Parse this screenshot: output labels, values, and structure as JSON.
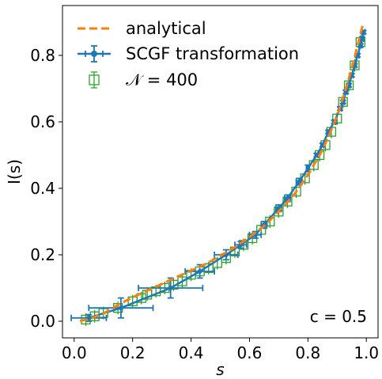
{
  "chart_data": {
    "type": "line",
    "xlabel": "s",
    "ylabel": "I(s)",
    "xlim": [
      -0.04,
      1.04
    ],
    "ylim": [
      -0.05,
      0.95
    ],
    "x_ticks": [
      0.0,
      0.2,
      0.4,
      0.6,
      0.8,
      1.0
    ],
    "x_tick_labels": [
      "0.0",
      "0.2",
      "0.4",
      "0.6",
      "0.8",
      "1.0"
    ],
    "y_ticks": [
      0.0,
      0.2,
      0.4,
      0.6,
      0.8
    ],
    "y_tick_labels": [
      "0.0",
      "0.2",
      "0.4",
      "0.6",
      "0.8"
    ],
    "grid": false,
    "legend_position": "top-left",
    "annotation": "c = 0.5",
    "colors": {
      "analytical": "#ff7f0e",
      "scgf": "#1f77b4",
      "n400": "#2ca02c"
    },
    "series": [
      {
        "name": "analytical",
        "style": "dashed",
        "x": [
          0.02,
          0.05,
          0.1,
          0.15,
          0.2,
          0.25,
          0.3,
          0.35,
          0.4,
          0.45,
          0.5,
          0.55,
          0.6,
          0.65,
          0.7,
          0.75,
          0.8,
          0.85,
          0.9,
          0.93,
          0.95,
          0.97,
          0.99
        ],
        "y": [
          0.001,
          0.006,
          0.023,
          0.049,
          0.072,
          0.092,
          0.112,
          0.133,
          0.152,
          0.172,
          0.197,
          0.223,
          0.253,
          0.287,
          0.33,
          0.378,
          0.44,
          0.515,
          0.617,
          0.7,
          0.76,
          0.83,
          0.9
        ]
      },
      {
        "name": "SCGF transformation",
        "x": [
          0.05,
          0.16,
          0.33,
          0.43,
          0.52,
          0.57,
          0.62,
          0.65,
          0.7,
          0.73,
          0.77,
          0.8,
          0.83,
          0.85,
          0.87,
          0.89,
          0.91,
          0.92,
          0.93,
          0.94,
          0.95,
          0.96,
          0.97,
          0.98,
          0.985,
          0.99
        ],
        "y": [
          0.01,
          0.04,
          0.1,
          0.15,
          0.2,
          0.23,
          0.26,
          0.29,
          0.34,
          0.37,
          0.42,
          0.46,
          0.5,
          0.53,
          0.57,
          0.6,
          0.64,
          0.66,
          0.69,
          0.71,
          0.74,
          0.77,
          0.8,
          0.83,
          0.85,
          0.87
        ],
        "x_err": [
          0.06,
          0.11,
          0.11,
          0.05,
          0.04,
          0.02,
          0.02,
          0.01,
          0.01,
          0.01,
          0.01,
          0.005,
          0.005,
          0.005,
          0.005,
          0.005,
          0.005,
          0.005,
          0.005,
          0.005,
          0.005,
          0.005,
          0.005,
          0.005,
          0.005,
          0.005
        ],
        "y_err": [
          0.01,
          0.03,
          0.03,
          0.02,
          0.015,
          0.01,
          0.01,
          0.01,
          0.01,
          0.01,
          0.01,
          0.01,
          0.005,
          0.005,
          0.005,
          0.005,
          0.005,
          0.005,
          0.005,
          0.005,
          0.005,
          0.005,
          0.005,
          0.005,
          0.005,
          0.005
        ]
      },
      {
        "name": "𝒩 = 400",
        "x": [
          0.04,
          0.07,
          0.1,
          0.15,
          0.2,
          0.23,
          0.25,
          0.28,
          0.31,
          0.34,
          0.37,
          0.4,
          0.43,
          0.46,
          0.49,
          0.52,
          0.55,
          0.58,
          0.61,
          0.64,
          0.67,
          0.7,
          0.73,
          0.76,
          0.79,
          0.82,
          0.84,
          0.86,
          0.88,
          0.9,
          0.92,
          0.94,
          0.96,
          0.98
        ],
        "y": [
          0.005,
          0.015,
          0.025,
          0.04,
          0.06,
          0.07,
          0.08,
          0.09,
          0.1,
          0.11,
          0.12,
          0.14,
          0.15,
          0.16,
          0.175,
          0.19,
          0.21,
          0.23,
          0.25,
          0.275,
          0.3,
          0.33,
          0.36,
          0.39,
          0.43,
          0.47,
          0.5,
          0.53,
          0.57,
          0.61,
          0.66,
          0.71,
          0.77,
          0.84
        ]
      }
    ]
  }
}
